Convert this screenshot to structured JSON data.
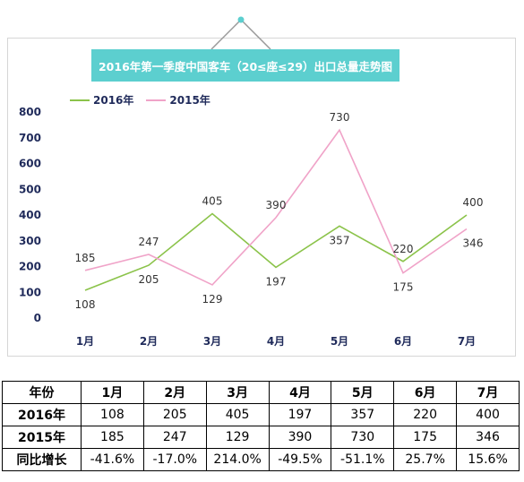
{
  "chart_data": {
    "type": "line",
    "title": "2016年第一季度中国客车（20≤座≤29）出口总量走势图",
    "categories": [
      "1月",
      "2月",
      "3月",
      "4月",
      "5月",
      "6月",
      "7月"
    ],
    "series": [
      {
        "name": "2016年",
        "color": "#8bc34a",
        "values": [
          108,
          205,
          405,
          197,
          357,
          220,
          400
        ]
      },
      {
        "name": "2015年",
        "color": "#f0a3c8",
        "values": [
          185,
          247,
          129,
          390,
          730,
          175,
          346
        ]
      }
    ],
    "y_ticks": [
      "0",
      "100",
      "200",
      "300",
      "400",
      "500",
      "600",
      "700",
      "800"
    ],
    "ylim": [
      0,
      800
    ],
    "legend_position": "top-left",
    "grid": false
  },
  "table": {
    "header": [
      "年份",
      "1月",
      "2月",
      "3月",
      "4月",
      "5月",
      "6月",
      "7月"
    ],
    "rows": [
      [
        "2016年",
        "108",
        "205",
        "405",
        "197",
        "357",
        "220",
        "400"
      ],
      [
        "2015年",
        "185",
        "247",
        "129",
        "390",
        "730",
        "175",
        "346"
      ],
      [
        "同比增长",
        "-41.6%",
        "-17.0%",
        "214.0%",
        "-49.5%",
        "-51.1%",
        "25.7%",
        "15.6%"
      ]
    ]
  }
}
